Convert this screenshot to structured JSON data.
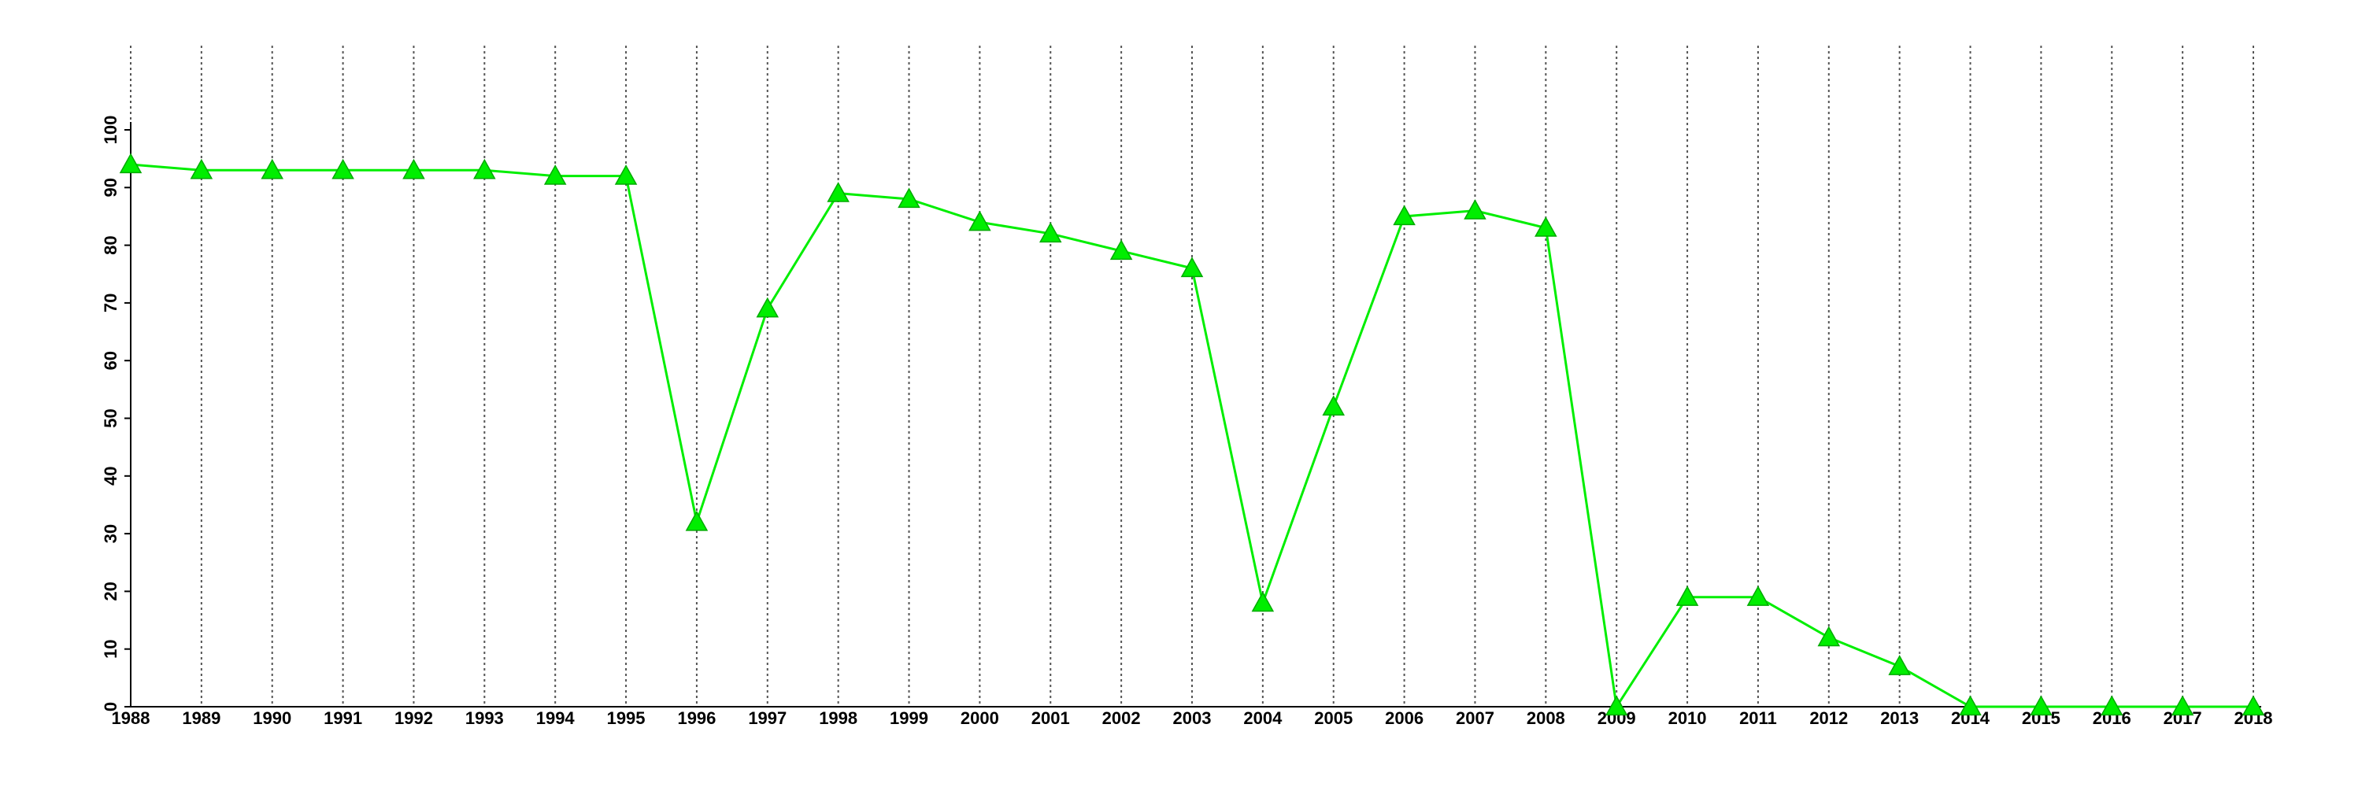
{
  "chart_data": {
    "type": "line",
    "x": [
      1988,
      1989,
      1990,
      1991,
      1992,
      1993,
      1994,
      1995,
      1996,
      1997,
      1998,
      1999,
      2000,
      2001,
      2002,
      2003,
      2004,
      2005,
      2006,
      2007,
      2008,
      2009,
      2010,
      2011,
      2012,
      2013,
      2014,
      2015,
      2016,
      2017,
      2018
    ],
    "values": [
      94,
      93,
      93,
      93,
      93,
      93,
      92,
      92,
      32,
      69,
      89,
      88,
      84,
      82,
      79,
      76,
      18,
      52,
      85,
      86,
      83,
      0,
      19,
      19,
      12,
      7,
      0,
      0,
      0,
      0,
      0
    ],
    "color": "#00ee00",
    "marker": "triangle",
    "xlim": [
      1988,
      2018
    ],
    "xticks": [
      1988,
      1989,
      1990,
      1991,
      1992,
      1993,
      1994,
      1995,
      1996,
      1997,
      1998,
      1999,
      2000,
      2001,
      2002,
      2003,
      2004,
      2005,
      2006,
      2007,
      2008,
      2009,
      2010,
      2011,
      2012,
      2013,
      2014,
      2015,
      2016,
      2017,
      2018
    ],
    "ylim": [
      0,
      100
    ],
    "yticks": [
      0,
      10,
      20,
      30,
      40,
      50,
      60,
      70,
      80,
      90,
      100
    ],
    "grid": "x"
  }
}
